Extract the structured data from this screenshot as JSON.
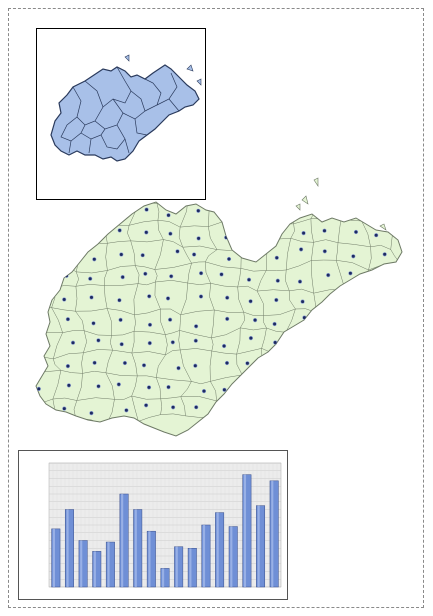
{
  "map": {
    "colors": {
      "inset_fill": "#a8c0e8",
      "inset_line": "#2a3a5c",
      "main_fill": "#e4f4d4",
      "main_line": "#6e7a66",
      "marker": "#1e2a60",
      "marker_stroke": "#8fa4d8"
    }
  },
  "chart_data": {
    "type": "bar",
    "title": "",
    "xlabel": "",
    "ylabel": "",
    "ylim": [
      0,
      1600
    ],
    "grid": true,
    "bar_color": "#6f8fd6",
    "values": [
      750,
      1000,
      600,
      460,
      580,
      1200,
      1000,
      720,
      240,
      520,
      500,
      800,
      960,
      780,
      1450,
      1050,
      1370
    ]
  }
}
